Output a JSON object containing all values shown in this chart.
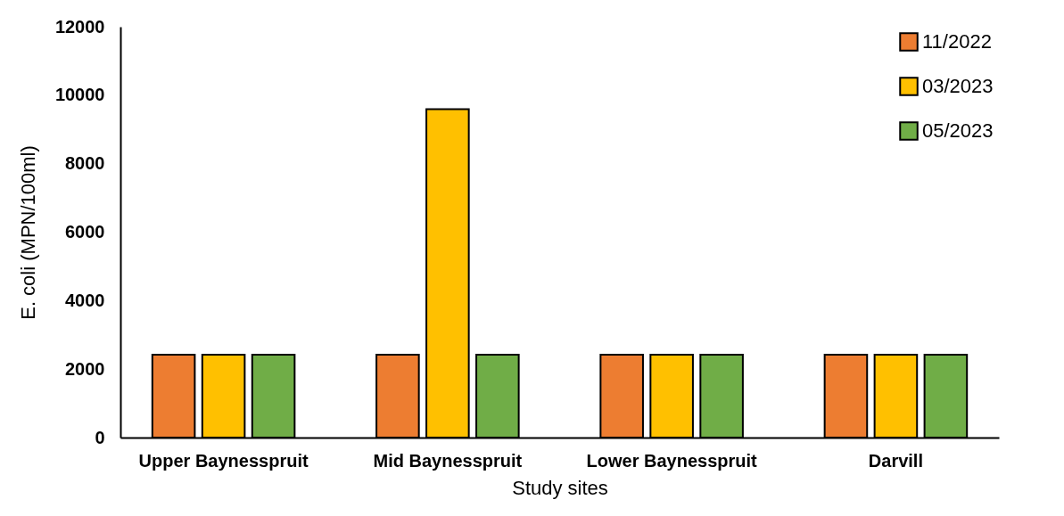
{
  "chart_data": {
    "type": "bar",
    "xlabel": "Study sites",
    "ylabel": "E. coli (MPN/100ml)",
    "categories": [
      "Upper Baynesspruit",
      "Mid Baynesspruit",
      "Lower Baynesspruit",
      "Darvill"
    ],
    "series": [
      {
        "name": "11/2022",
        "color": "#ed7d31",
        "values": [
          2420,
          2420,
          2420,
          2420
        ]
      },
      {
        "name": "03/2023",
        "color": "#ffc000",
        "values": [
          2420,
          9590,
          2420,
          2420
        ]
      },
      {
        "name": "05/2023",
        "color": "#70ad47",
        "values": [
          2420,
          2420,
          2420,
          2420
        ]
      }
    ],
    "ylim": [
      0,
      12000
    ],
    "yticks": [
      0,
      2000,
      4000,
      6000,
      8000,
      10000,
      12000
    ],
    "grid": false,
    "legend": "top right"
  }
}
